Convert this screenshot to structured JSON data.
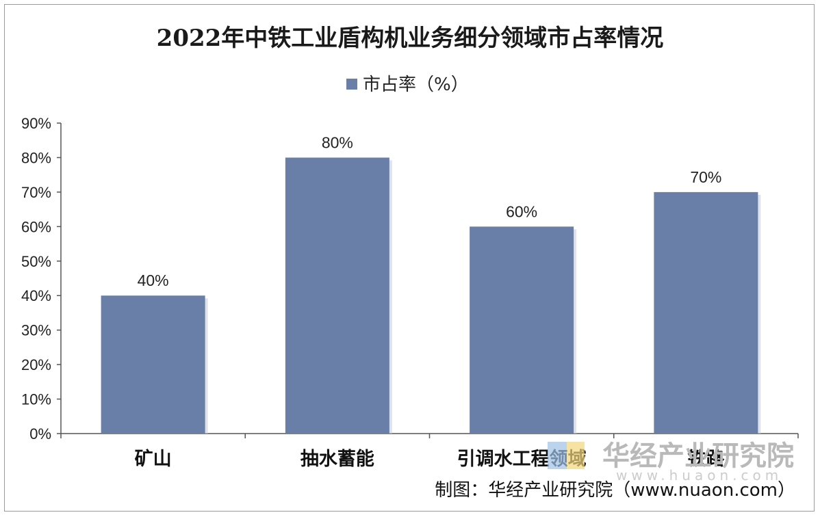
{
  "chart_data": {
    "type": "bar",
    "title": "2022年中铁工业盾构机业务细分领域市占率情况",
    "categories": [
      "矿山",
      "抽水蓄能",
      "引调水工程领域",
      "铁路"
    ],
    "series": [
      {
        "name": "市占率（%）",
        "values": [
          40,
          80,
          60,
          70
        ],
        "color": "#6a7fa8"
      }
    ],
    "data_labels": [
      "40%",
      "80%",
      "60%",
      "70%"
    ],
    "y_ticks": [
      "0%",
      "10%",
      "20%",
      "30%",
      "40%",
      "50%",
      "60%",
      "70%",
      "80%",
      "90%"
    ],
    "ylim": [
      0,
      90
    ],
    "grid": false,
    "legend_position": "top-center"
  },
  "watermark": {
    "text": "华经产业研究院",
    "sub": "www.huaon.com"
  },
  "source_note": "制图：华经产业研究院（www.nuaon.com）"
}
